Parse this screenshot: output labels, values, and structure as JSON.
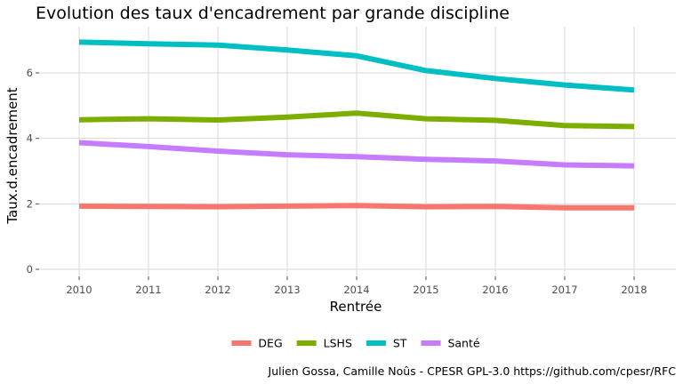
{
  "chart_data": {
    "type": "line",
    "title": "Evolution des taux d'encadrement par grande discipline",
    "xlabel": "Rentrée",
    "ylabel": "Taux.d.encadrement",
    "x": [
      2010,
      2011,
      2012,
      2013,
      2014,
      2015,
      2016,
      2017,
      2018
    ],
    "xticks": [
      "2010",
      "2011",
      "2012",
      "2013",
      "2014",
      "2015",
      "2016",
      "2017",
      "2018"
    ],
    "yticks": [
      "0",
      "2",
      "4",
      "6"
    ],
    "ylim": [
      0,
      7.2
    ],
    "grid": true,
    "legend_position": "bottom",
    "series": [
      {
        "name": "DEG",
        "color": "#F8766D",
        "values": [
          1.93,
          1.92,
          1.91,
          1.93,
          1.95,
          1.91,
          1.92,
          1.88,
          1.88
        ]
      },
      {
        "name": "LSHS",
        "color": "#7CAE00",
        "values": [
          4.57,
          4.6,
          4.56,
          4.65,
          4.77,
          4.6,
          4.55,
          4.39,
          4.36
        ]
      },
      {
        "name": "ST",
        "color": "#00BFC4",
        "values": [
          6.94,
          6.89,
          6.85,
          6.7,
          6.52,
          6.07,
          5.83,
          5.63,
          5.48
        ]
      },
      {
        "name": "Santé",
        "color": "#C77CFF",
        "values": [
          3.87,
          3.75,
          3.61,
          3.5,
          3.44,
          3.36,
          3.31,
          3.19,
          3.16
        ]
      }
    ],
    "caption": "Julien Gossa, Camille Noûs - CPESR GPL-3.0 https://github.com/cpesr/RFC"
  }
}
